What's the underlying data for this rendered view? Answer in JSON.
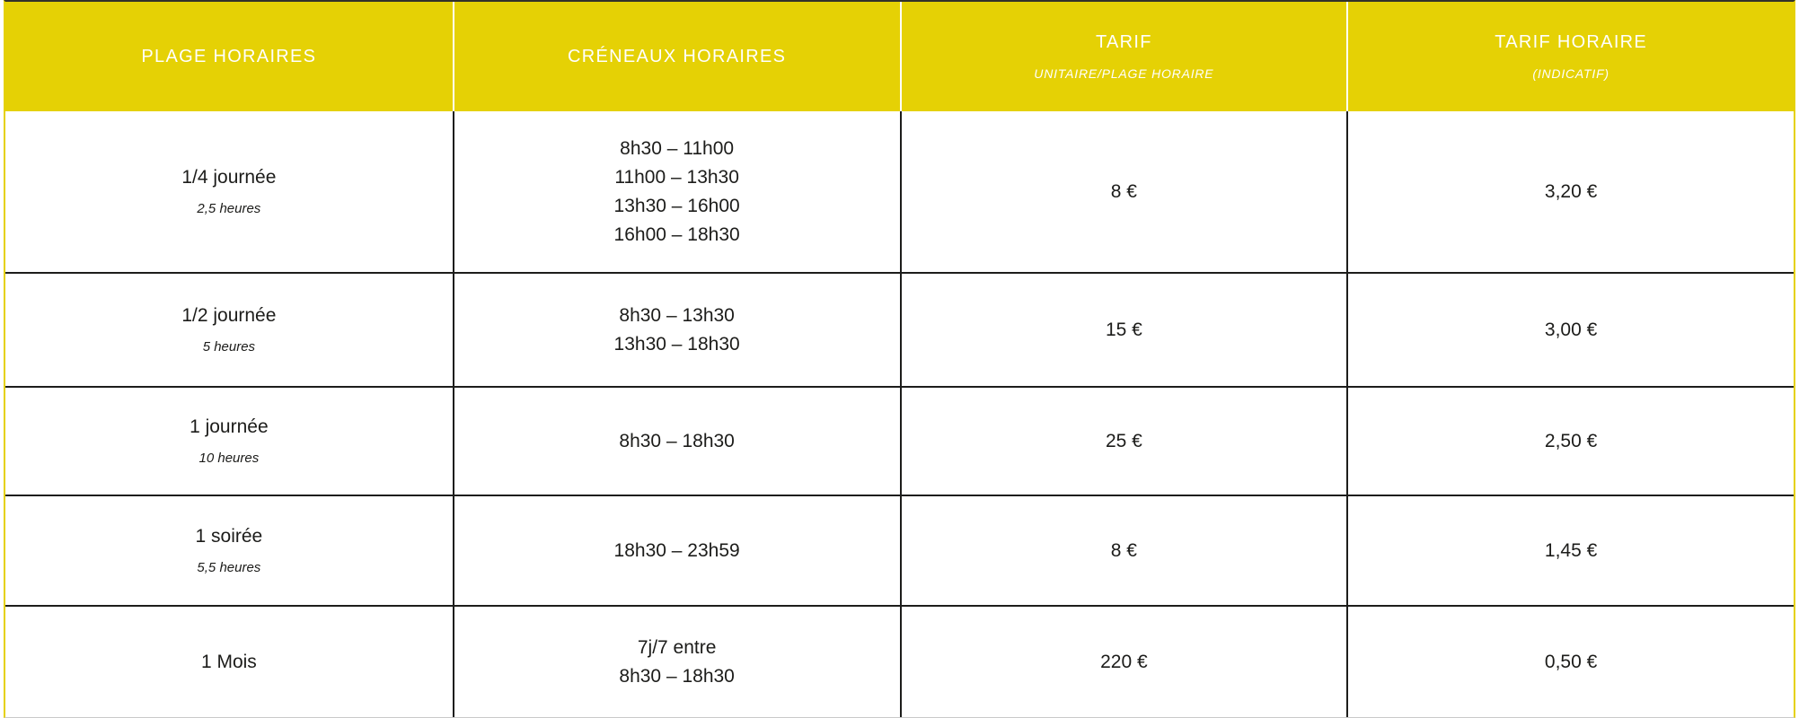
{
  "theme": {
    "header_bg": "#e5d105",
    "header_text": "#ffffff",
    "body_text": "#1c1c1a",
    "grid_line": "#1d1d1b",
    "side_border": "#e5d105"
  },
  "header": {
    "columns": [
      {
        "title": "PLAGE HORAIRES",
        "subtitle": ""
      },
      {
        "title": "CRÉNEAUX HORAIRES",
        "subtitle": ""
      },
      {
        "title": "TARIF",
        "subtitle": "UNITAIRE/PLAGE HORAIRE"
      },
      {
        "title": "TARIF HORAIRE",
        "subtitle": "(INDICATIF)"
      }
    ]
  },
  "rows": [
    {
      "plage": "1/4 journée",
      "duree": "2,5 heures",
      "creneaux": [
        "8h30 – 11h00",
        "11h00 – 13h30",
        "13h30 – 16h00",
        "16h00 – 18h30"
      ],
      "tarif": "8 €",
      "tarif_horaire": "3,20 €"
    },
    {
      "plage": "1/2 journée",
      "duree": "5 heures",
      "creneaux": [
        "8h30 – 13h30",
        "13h30 – 18h30"
      ],
      "tarif": "15 €",
      "tarif_horaire": "3,00 €"
    },
    {
      "plage": "1 journée",
      "duree": "10 heures",
      "creneaux": [
        "8h30 – 18h30"
      ],
      "tarif": "25 €",
      "tarif_horaire": "2,50 €"
    },
    {
      "plage": "1 soirée",
      "duree": "5,5 heures",
      "creneaux": [
        "18h30 – 23h59"
      ],
      "tarif": "8 €",
      "tarif_horaire": "1,45 €"
    },
    {
      "plage": "1 Mois",
      "duree": "",
      "creneaux": [
        "7j/7 entre",
        "8h30 – 18h30"
      ],
      "tarif": "220 €",
      "tarif_horaire": "0,50 €"
    }
  ]
}
